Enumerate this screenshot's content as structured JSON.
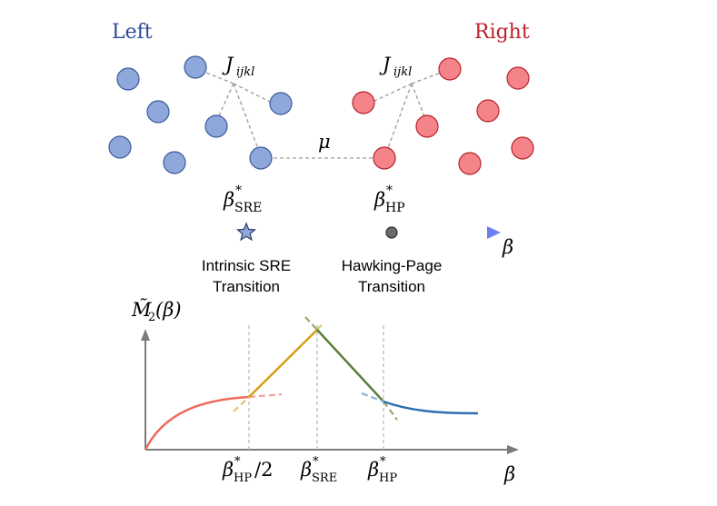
{
  "top": {
    "left_label": "Left",
    "right_label": "Right",
    "coupling_left": "J",
    "coupling_left_sub": "ijkl",
    "coupling_right": "J",
    "coupling_right_sub": "ijkl",
    "link_label": "μ"
  },
  "colors": {
    "left_node": "#8fa8dc",
    "left_stroke": "#3a5a9a",
    "right_node": "#f0727a",
    "right_stroke": "#b8222c",
    "left_text": "#2f4a94",
    "right_text": "#c0202a",
    "phase1": "#ee6a5e",
    "phase2": "#d4a013",
    "phase3": "#5a7f3a",
    "phase4": "#2d6fb0"
  },
  "axis_beta": {
    "beta_label": "β",
    "sre_label": "β",
    "sre_sub": "SRE",
    "sre_sup": "*",
    "hp_label": "β",
    "hp_sub": "HP",
    "hp_sup": "*",
    "sre_transition_line1": "Intrinsic SRE",
    "sre_transition_line2": "Transition",
    "hp_transition_line1": "Hawking-Page",
    "hp_transition_line2": "Transition"
  },
  "plot": {
    "ylabel": "M̃",
    "ylabel_sub": "2",
    "ylabel_arg": "(β)",
    "xlabel": "β",
    "tick1_label": "β",
    "tick1_sub": "HP",
    "tick1_sup": "*",
    "tick1_suffix": "/2",
    "tick2_label": "β",
    "tick2_sub": "SRE",
    "tick2_sup": "*",
    "tick3_label": "β",
    "tick3_sub": "HP",
    "tick3_sup": "*"
  }
}
